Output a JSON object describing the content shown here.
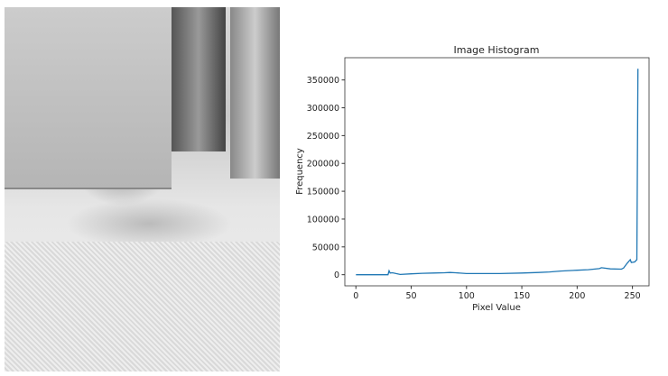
{
  "photo": {
    "description_icon": "grayscale-sketch-photo-dog"
  },
  "chart_data": {
    "type": "line",
    "title": "Image Histogram",
    "xlabel": "Pixel Value",
    "ylabel": "Frequency",
    "xlim": [
      -10,
      265
    ],
    "ylim": [
      -20000,
      390000
    ],
    "xticks": [
      0,
      50,
      100,
      150,
      200,
      250
    ],
    "yticks": [
      0,
      50000,
      100000,
      150000,
      200000,
      250000,
      300000,
      350000
    ],
    "grid": false,
    "color": "#1f77b4",
    "x": [
      0,
      29,
      30,
      31,
      33,
      40,
      50,
      60,
      70,
      80,
      85,
      90,
      100,
      115,
      130,
      150,
      165,
      175,
      185,
      195,
      200,
      210,
      220,
      222,
      230,
      240,
      242,
      245,
      248,
      249,
      252,
      254,
      255
    ],
    "y": [
      0,
      0,
      7000,
      3000,
      3500,
      500,
      1500,
      2500,
      3000,
      3500,
      4000,
      3500,
      2000,
      2000,
      2000,
      3000,
      4000,
      5000,
      6500,
      7500,
      8000,
      9000,
      11000,
      12500,
      10500,
      10000,
      12000,
      20000,
      27000,
      22000,
      23000,
      27000,
      370000
    ]
  }
}
